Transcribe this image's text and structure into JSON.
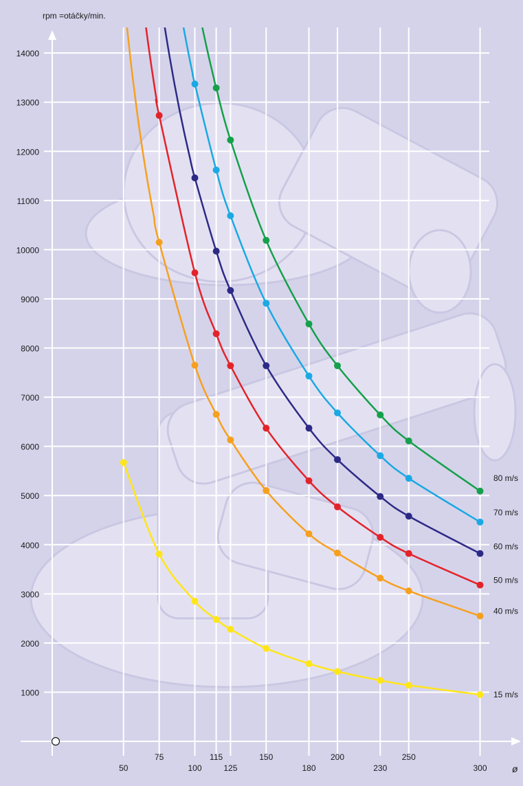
{
  "chart_data": {
    "type": "line",
    "ylabel": "rpm =otáčky/min.",
    "xlabel": "ø",
    "x_ticks": [
      50,
      75,
      100,
      115,
      125,
      150,
      180,
      200,
      230,
      250,
      300
    ],
    "y_ticks": [
      1000,
      2000,
      3000,
      4000,
      5000,
      6000,
      7000,
      8000,
      9000,
      10000,
      11000,
      12000,
      13000,
      14000
    ],
    "xlim": [
      0,
      310
    ],
    "ylim": [
      -1500,
      14500
    ],
    "grid": true,
    "background_color": "#d5d3ea",
    "series": [
      {
        "name": "15 m/s",
        "color": "#ffe619",
        "x": [
          50,
          75,
          100,
          115,
          125,
          150,
          180,
          200,
          230,
          250,
          300
        ],
        "y": [
          5670,
          3810,
          2850,
          2480,
          2280,
          1890,
          1580,
          1420,
          1240,
          1140,
          950
        ]
      },
      {
        "name": "40 m/s",
        "color": "#f6a020",
        "x": [
          75,
          100,
          115,
          125,
          150,
          180,
          200,
          230,
          250,
          300
        ],
        "y": [
          10150,
          7650,
          6650,
          6130,
          5100,
          4220,
          3830,
          3320,
          3060,
          2550
        ]
      },
      {
        "name": "50 m/s",
        "color": "#e3232a",
        "x": [
          75,
          100,
          115,
          125,
          150,
          180,
          200,
          230,
          250,
          300
        ],
        "y": [
          12730,
          9530,
          8290,
          7640,
          6370,
          5300,
          4770,
          4150,
          3820,
          3180
        ]
      },
      {
        "name": "60 m/s",
        "color": "#2d2a86",
        "x": [
          100,
          115,
          125,
          150,
          180,
          200,
          230,
          250,
          300
        ],
        "y": [
          11460,
          9970,
          9170,
          7640,
          6370,
          5730,
          4980,
          4580,
          3820
        ]
      },
      {
        "name": "70 m/s",
        "color": "#1aa9e3",
        "x": [
          100,
          115,
          125,
          150,
          180,
          200,
          230,
          250,
          300
        ],
        "y": [
          13370,
          11620,
          10690,
          8910,
          7430,
          6680,
          5810,
          5350,
          4460
        ]
      },
      {
        "name": "80 m/s",
        "color": "#15a04b",
        "x": [
          115,
          125,
          150,
          180,
          200,
          230,
          250,
          300
        ],
        "y": [
          13290,
          12230,
          10190,
          8490,
          7640,
          6640,
          6110,
          5090
        ]
      }
    ]
  }
}
